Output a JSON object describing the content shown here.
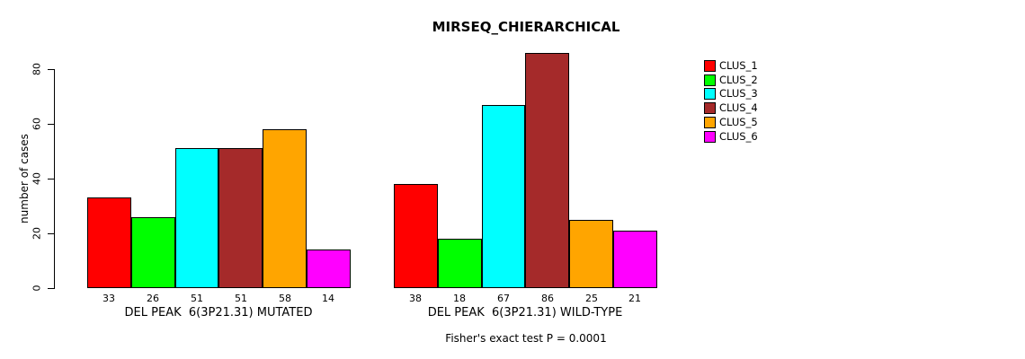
{
  "chart_data": {
    "type": "bar",
    "title": "MIRSEQ_CHIERARCHICAL",
    "ylabel": "number of cases",
    "xlabel": "",
    "yticks": [
      0,
      20,
      40,
      60,
      80
    ],
    "ylim": [
      0,
      86
    ],
    "grid": false,
    "legend_position": "right",
    "categories": [
      "CLUS_1",
      "CLUS_2",
      "CLUS_3",
      "CLUS_4",
      "CLUS_5",
      "CLUS_6"
    ],
    "colors": [
      "#FF0000",
      "#00FF00",
      "#00FFFF",
      "#A52A2A",
      "#FFA500",
      "#FF00FF"
    ],
    "groups": [
      {
        "label": "DEL PEAK  6(3P21.31) MUTATED",
        "values": [
          33,
          26,
          51,
          51,
          58,
          14
        ]
      },
      {
        "label": "DEL PEAK  6(3P21.31) WILD-TYPE",
        "values": [
          38,
          18,
          67,
          86,
          25,
          21
        ]
      }
    ],
    "legend": [
      {
        "label": "CLUS_1",
        "color": "#FF0000"
      },
      {
        "label": "CLUS_2",
        "color": "#00FF00"
      },
      {
        "label": "CLUS_3",
        "color": "#00FFFF"
      },
      {
        "label": "CLUS_4",
        "color": "#A52A2A"
      },
      {
        "label": "CLUS_5",
        "color": "#FFA500"
      },
      {
        "label": "CLUS_6",
        "color": "#FF00FF"
      }
    ],
    "footnote": "Fisher's exact test P = 0.0001"
  }
}
